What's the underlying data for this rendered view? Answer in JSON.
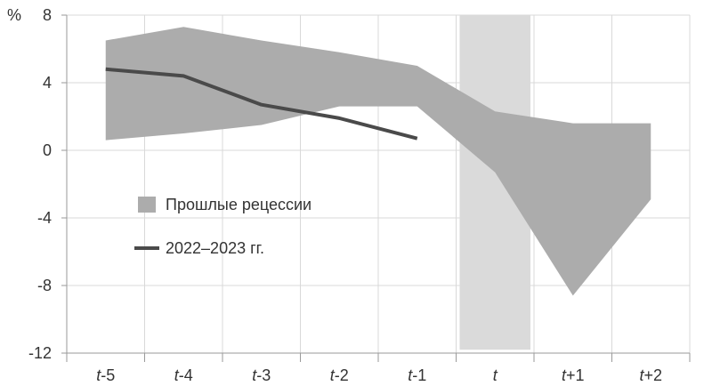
{
  "chart_data": {
    "type": "area",
    "unit_label": "%",
    "y_ticks": [
      "8",
      "4",
      "0",
      "-4",
      "-8",
      "-12"
    ],
    "ylim": [
      -12,
      8
    ],
    "categories": [
      {
        "base": "t",
        "suffix": "-5"
      },
      {
        "base": "t",
        "suffix": "-4"
      },
      {
        "base": "t",
        "suffix": "-3"
      },
      {
        "base": "t",
        "suffix": "-2"
      },
      {
        "base": "t",
        "suffix": "-1"
      },
      {
        "base": "t",
        "suffix": ""
      },
      {
        "base": "t",
        "suffix": "+1"
      },
      {
        "base": "t",
        "suffix": "+2"
      }
    ],
    "highlight_category": 5,
    "highlight_ylim": [
      -11.8,
      8
    ],
    "series": [
      {
        "name": "Прошлые рецессии",
        "kind": "band",
        "upper": [
          {
            "x": 0,
            "y": 6.5
          },
          {
            "x": 1,
            "y": 7.3
          },
          {
            "x": 2,
            "y": 6.5
          },
          {
            "x": 3,
            "y": 5.8
          },
          {
            "x": 4,
            "y": 5.0
          },
          {
            "x": 5,
            "y": 2.3
          },
          {
            "x": 6,
            "y": 1.6
          },
          {
            "x": 7,
            "y": 1.6
          }
        ],
        "lower": [
          {
            "x": 0,
            "y": 0.6
          },
          {
            "x": 1,
            "y": 1.0
          },
          {
            "x": 2,
            "y": 1.5
          },
          {
            "x": 3,
            "y": 2.6
          },
          {
            "x": 4,
            "y": 2.6
          },
          {
            "x": 5,
            "y": -1.3
          },
          {
            "x": 6,
            "y": -8.6
          },
          {
            "x": 7,
            "y": -2.9
          }
        ],
        "color": "#acacac"
      },
      {
        "name": "2022–2023 гг.",
        "kind": "line",
        "x": [
          0,
          1,
          2,
          3,
          4
        ],
        "values": [
          4.8,
          4.4,
          2.7,
          1.9,
          0.7
        ],
        "color": "#4a4a4a"
      }
    ],
    "highlight_color": "#dadada",
    "grid_color": "#d9d9d9",
    "legend_placement": "left-center"
  }
}
